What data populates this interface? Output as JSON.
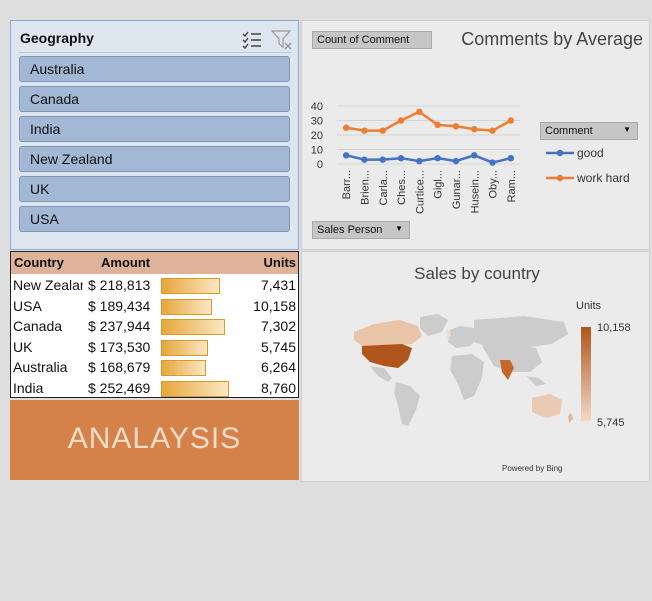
{
  "slicer": {
    "title": "Geography",
    "items": [
      "Australia",
      "Canada",
      "India",
      "New Zealand",
      "UK",
      "USA"
    ],
    "icons": [
      "multi-select-icon",
      "clear-filter-icon"
    ]
  },
  "line_chart": {
    "title": "Comments by Average",
    "values_button": "Count of Comment",
    "axis_button": "Sales Person",
    "legend_button": "Comment",
    "colors": {
      "good": "#4472c4",
      "work_hard": "#ed7d31"
    }
  },
  "chart_data": {
    "type": "line",
    "title": "Comments by Average",
    "categories": [
      "Barr...",
      "Brien...",
      "Carla...",
      "Ches...",
      "Curtice...",
      "Gigl...",
      "Gunar...",
      "Husein...",
      "Oby...",
      "Ram..."
    ],
    "series": [
      {
        "name": "good",
        "values": [
          6,
          3,
          3,
          4,
          2,
          4,
          2,
          6,
          1,
          4
        ]
      },
      {
        "name": "work hard",
        "values": [
          25,
          23,
          23,
          30,
          36,
          27,
          26,
          24,
          23,
          30
        ]
      }
    ],
    "ylim": [
      0,
      40
    ],
    "yticks": [
      0,
      10,
      20,
      30,
      40
    ],
    "grid": true,
    "legend": "right"
  },
  "table": {
    "headers": {
      "country": "Country",
      "amount": "Amount",
      "units": "Units"
    },
    "rows": [
      {
        "country": "New Zealand",
        "amount": "$ 218,813",
        "units": "7,431",
        "amount_value": 218813
      },
      {
        "country": "USA",
        "amount": "$ 189,434",
        "units": "10,158",
        "amount_value": 189434
      },
      {
        "country": "Canada",
        "amount": "$ 237,944",
        "units": "7,302",
        "amount_value": 237944
      },
      {
        "country": "UK",
        "amount": "$ 173,530",
        "units": "5,745",
        "amount_value": 173530
      },
      {
        "country": "Australia",
        "amount": "$ 168,679",
        "units": "6,264",
        "amount_value": 168679
      },
      {
        "country": "India",
        "amount": "$ 252,469",
        "units": "8,760",
        "amount_value": 252469
      }
    ]
  },
  "banner": {
    "text": "ANALAYSIS"
  },
  "map_chart": {
    "title": "Sales by country",
    "legend_title": "Units",
    "legend_max": "10,158",
    "legend_min": "5,745",
    "powered_by": "Powered by Bing"
  }
}
